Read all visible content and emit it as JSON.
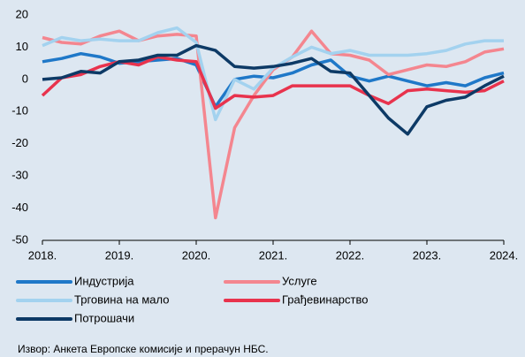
{
  "chart_data": {
    "type": "line",
    "categories": [
      "2018.",
      null,
      null,
      null,
      "2019.",
      null,
      null,
      null,
      "2020.",
      null,
      null,
      null,
      "2021.",
      null,
      null,
      null,
      "2022.",
      null,
      null,
      null,
      "2023.",
      null,
      null,
      null,
      "2024."
    ],
    "series": [
      {
        "name": "Индустрија",
        "color": "#1f78c8",
        "values": [
          5.5,
          6.5,
          8,
          7,
          5,
          5.5,
          6,
          6.5,
          4.5,
          -8.5,
          0,
          1,
          0.5,
          2,
          4.5,
          6,
          1,
          -0.5,
          1,
          -0.5,
          -2,
          -1,
          -2,
          0.5,
          2
        ]
      },
      {
        "name": "Услуге",
        "color": "#f4868f",
        "values": [
          13,
          11.5,
          11,
          13.5,
          15,
          12,
          13.5,
          14,
          13.5,
          -43,
          -15,
          -5,
          3,
          7,
          15,
          8,
          7.5,
          6,
          1.5,
          3,
          4.5,
          4,
          5.5,
          8.5,
          9.5
        ]
      },
      {
        "name": "Трговина на мало",
        "color": "#a3d2ef",
        "values": [
          10.5,
          13,
          12,
          12.5,
          12,
          12,
          14.5,
          16,
          11.5,
          -12.5,
          0,
          -3,
          3.5,
          7,
          10,
          8,
          9,
          7.5,
          7.5,
          7.5,
          8,
          9,
          11,
          12,
          12
        ]
      },
      {
        "name": "Грађевинарство",
        "color": "#e8334d",
        "values": [
          -5,
          0.5,
          1.5,
          4,
          5.5,
          4.5,
          7,
          6,
          5.5,
          -9,
          -5,
          -5.5,
          -5,
          -2,
          -2,
          -2,
          -2,
          -5,
          -7.5,
          -3.5,
          -3,
          -3.5,
          -4,
          -3.5,
          -0.5
        ]
      },
      {
        "name": "Потрошачи",
        "color": "#0d3a66",
        "values": [
          0,
          0.5,
          2.5,
          2,
          5.5,
          6,
          7.5,
          7.5,
          10.5,
          9,
          4,
          3.5,
          4,
          5,
          6.5,
          2.5,
          2,
          -5,
          -12,
          -17,
          -8.5,
          -6.5,
          -5.5,
          -2,
          1
        ]
      }
    ],
    "ylim": [
      -50,
      20
    ],
    "yticks": [
      -50,
      -40,
      -30,
      -20,
      -10,
      0,
      10,
      20
    ],
    "source": "Извор: Анкета Европске комисије и прерачун НБС."
  }
}
